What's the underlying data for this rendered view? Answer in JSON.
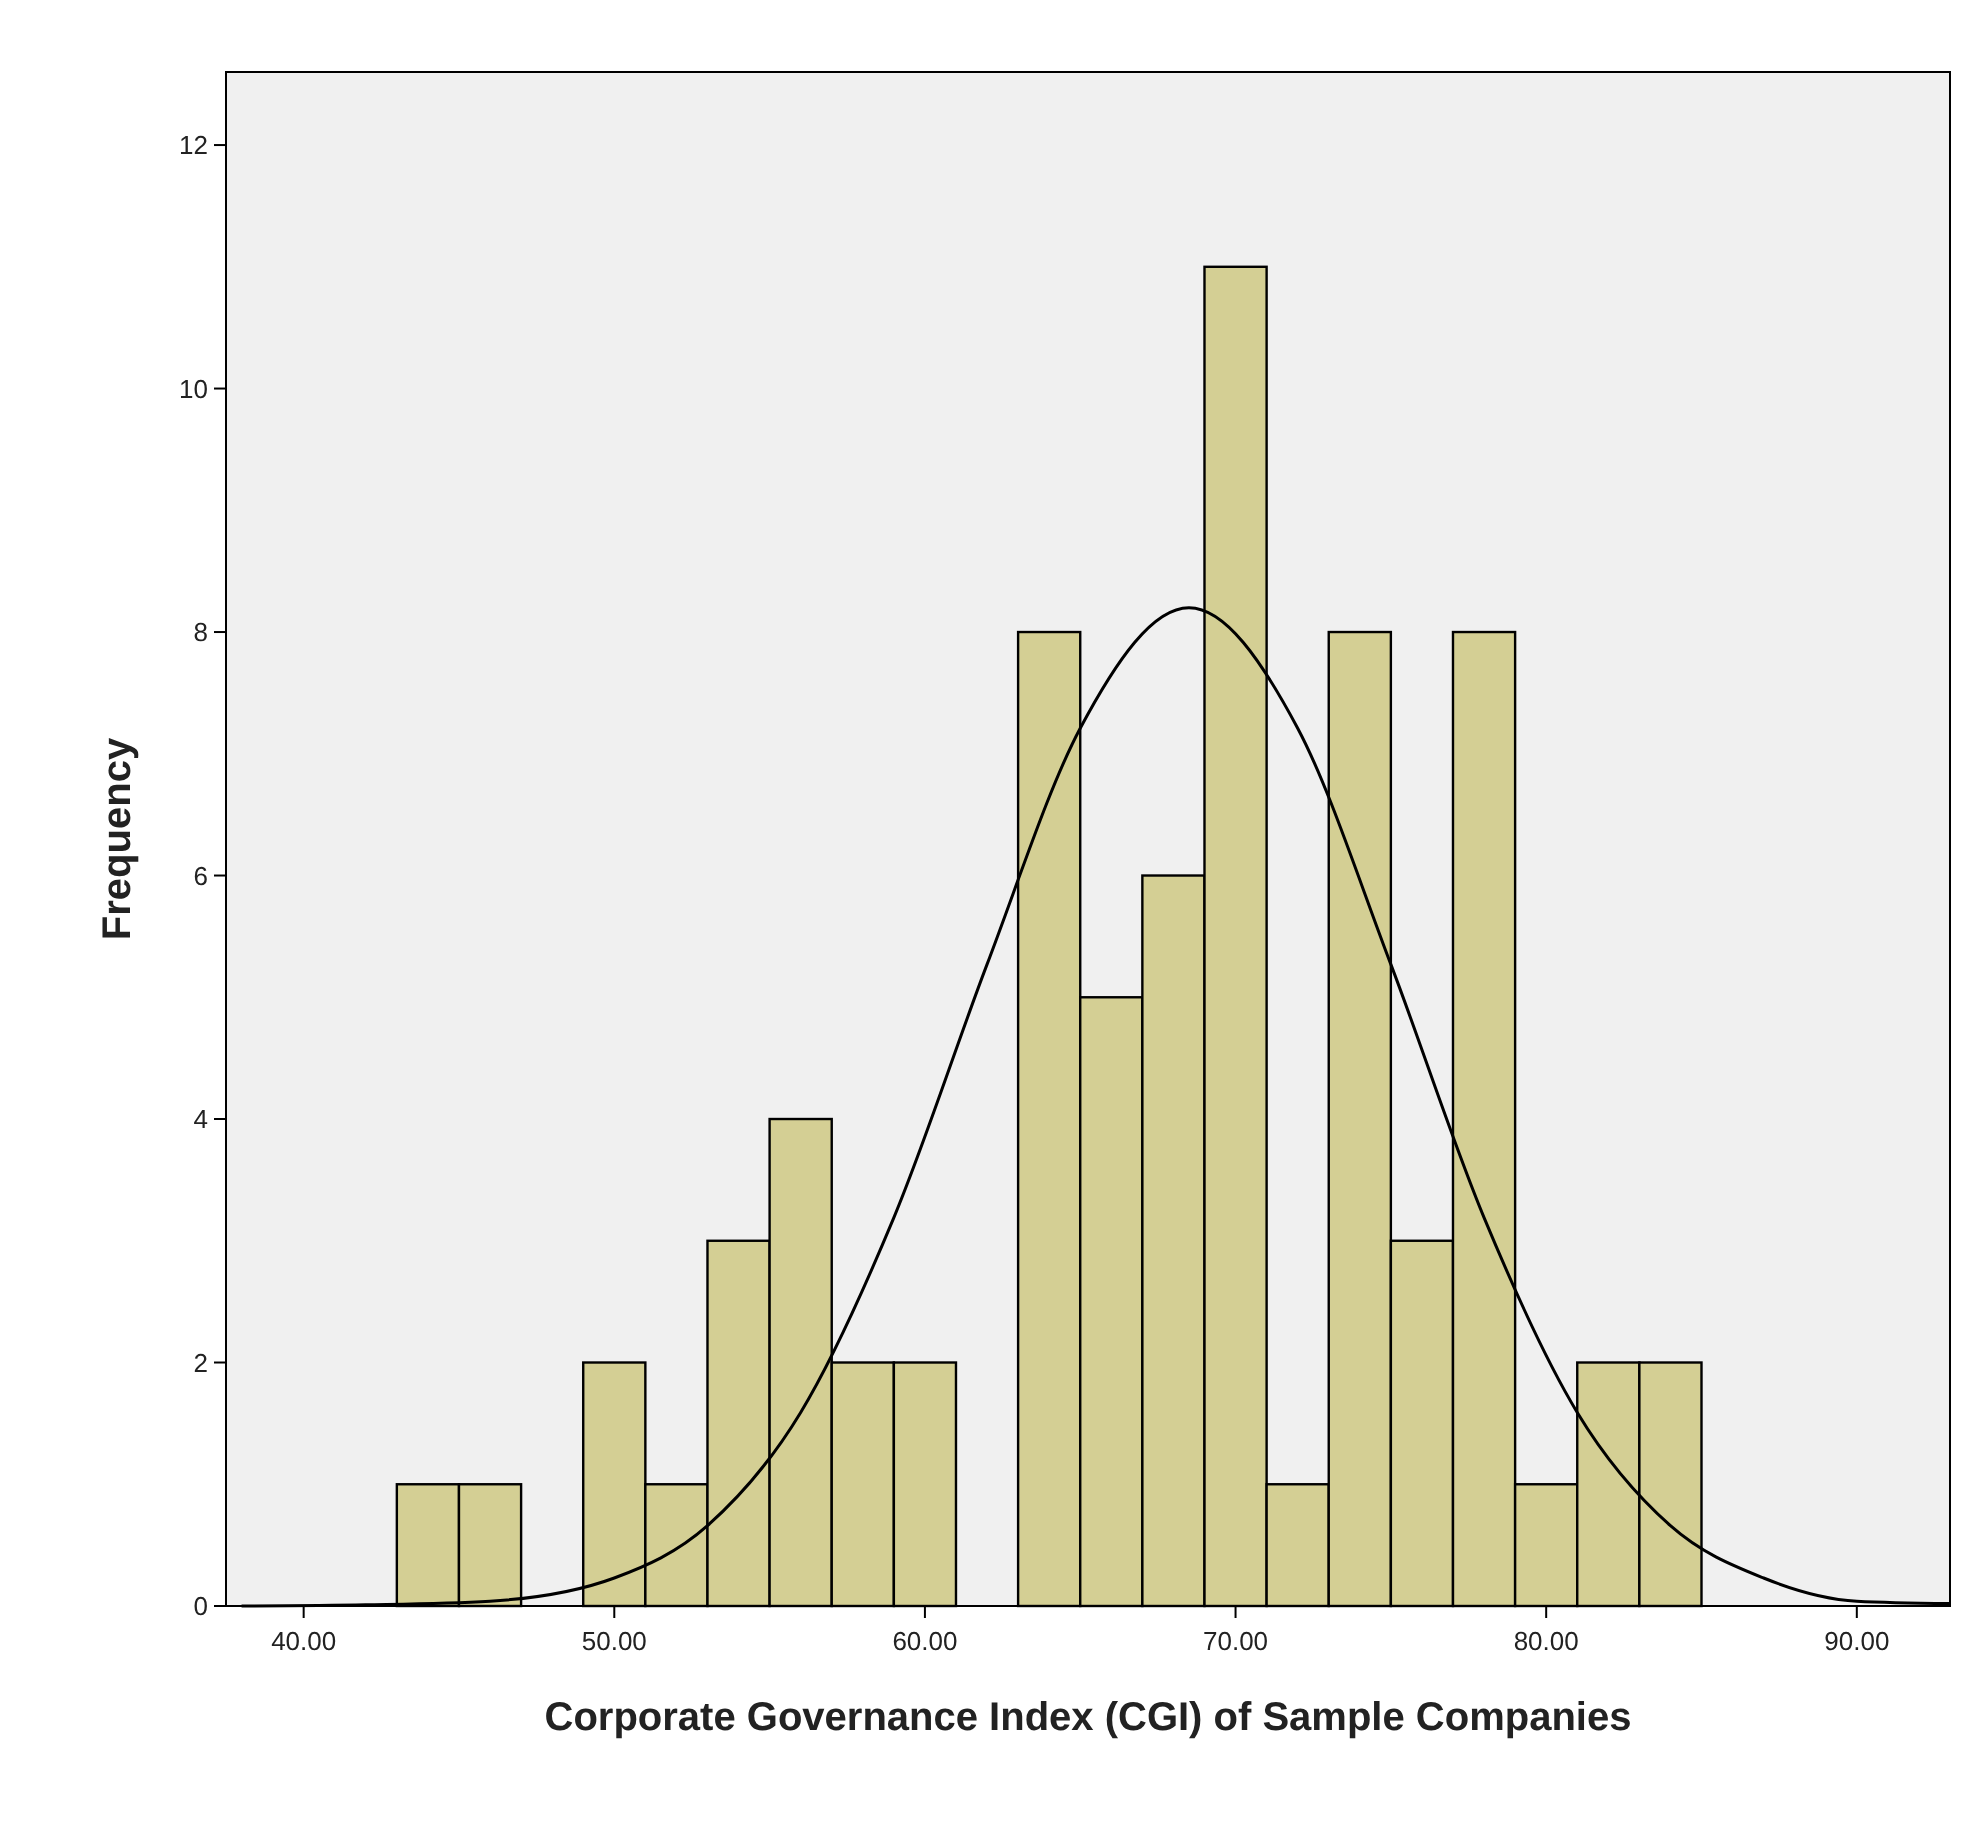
{
  "chart_data": {
    "type": "histogram",
    "xlabel": "Corporate Governance Index (CGI) of Sample Companies",
    "ylabel": "Frequency",
    "xlim": [
      37.5,
      93
    ],
    "xticks": [
      {
        "value": 40,
        "label": "40.00"
      },
      {
        "value": 50,
        "label": "50.00"
      },
      {
        "value": 60,
        "label": "60.00"
      },
      {
        "value": 70,
        "label": "70.00"
      },
      {
        "value": 80,
        "label": "80.00"
      },
      {
        "value": 90,
        "label": "90.00"
      }
    ],
    "ylim": [
      0,
      12.6
    ],
    "yticks": [
      0,
      2,
      4,
      6,
      8,
      10,
      12
    ],
    "grid": false,
    "series": [
      {
        "color": "#d4cf94",
        "bins": [
          43,
          45,
          47,
          49,
          51,
          53,
          55,
          57,
          59,
          61,
          63,
          65,
          67,
          69,
          71,
          73,
          75,
          77,
          79,
          81,
          83,
          85
        ],
        "values": [
          1,
          1,
          0,
          2,
          1,
          3,
          4,
          2,
          2,
          0,
          8,
          5,
          6,
          11,
          1,
          8,
          3,
          8,
          1,
          2,
          2
        ]
      },
      {
        "type": "line",
        "color": "#000000",
        "x": [
          38,
          42,
          46,
          50,
          53,
          56,
          59,
          62,
          65,
          68.5,
          72,
          75,
          78,
          81,
          84,
          87,
          90,
          93
        ],
        "values": [
          0,
          0.01,
          0.04,
          0.23,
          0.66,
          1.59,
          3.19,
          5.27,
          7.21,
          8.2,
          7.21,
          5.27,
          3.19,
          1.59,
          0.66,
          0.23,
          0.04,
          0.02
        ]
      }
    ]
  }
}
